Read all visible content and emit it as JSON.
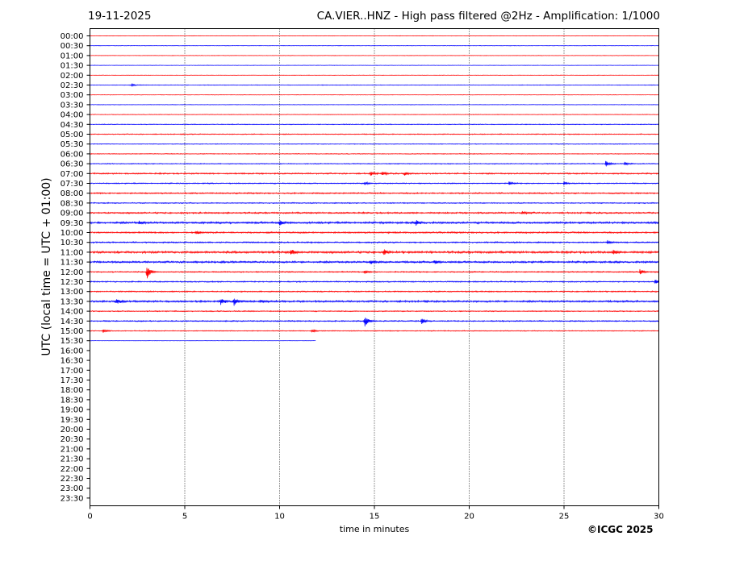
{
  "header": {
    "date": "19-11-2025",
    "title": "CA.VIER..HNZ - High pass filtered @2Hz - Amplification: 1/1000"
  },
  "footer": {
    "copyright": "©ICGC 2025"
  },
  "colors": {
    "trace_a": "#ff0000",
    "trace_b": "#0000ff",
    "axes": "#000000",
    "gridline": "#000000"
  },
  "chart_data": {
    "type": "line",
    "subtype": "helicorder",
    "xlabel": "time in minutes",
    "ylabel": "UTC (local time = UTC + 01:00)",
    "xlim": [
      0,
      30
    ],
    "xticks": [
      0,
      5,
      10,
      15,
      20,
      25,
      30
    ],
    "vertical_gridlines_at": [
      5,
      10,
      15,
      20,
      25
    ],
    "row_labels": [
      "00:00",
      "00:30",
      "01:00",
      "01:30",
      "02:00",
      "02:30",
      "03:00",
      "03:30",
      "04:00",
      "04:30",
      "05:00",
      "05:30",
      "06:00",
      "06:30",
      "07:00",
      "07:30",
      "08:00",
      "08:30",
      "09:00",
      "09:30",
      "10:00",
      "10:30",
      "11:00",
      "11:30",
      "12:00",
      "12:30",
      "13:00",
      "13:30",
      "14:00",
      "14:30",
      "15:00",
      "15:30",
      "16:00",
      "16:30",
      "17:00",
      "17:30",
      "18:00",
      "18:30",
      "19:00",
      "19:30",
      "20:00",
      "20:30",
      "21:00",
      "21:30",
      "22:00",
      "22:30",
      "23:00",
      "23:30"
    ],
    "trace_colors_alternate": [
      "red",
      "blue"
    ],
    "recorded_rows": 32,
    "last_row_end_minute": 11.9,
    "row_noise_levels": [
      0.3,
      0.3,
      0.3,
      0.3,
      0.3,
      0.4,
      0.3,
      0.3,
      0.4,
      0.5,
      0.6,
      0.5,
      0.5,
      0.6,
      0.9,
      0.7,
      0.9,
      0.7,
      1.0,
      1.3,
      1.0,
      0.9,
      1.4,
      1.2,
      0.8,
      0.8,
      0.8,
      1.2,
      0.7,
      0.8,
      0.6,
      0.2
    ],
    "events": [
      {
        "row": "02:30",
        "minute": 2.2,
        "amplitude": 1.5
      },
      {
        "row": "06:30",
        "minute": 27.2,
        "amplitude": 4
      },
      {
        "row": "06:30",
        "minute": 28.2,
        "amplitude": 2
      },
      {
        "row": "07:00",
        "minute": 14.8,
        "amplitude": 2.5
      },
      {
        "row": "07:00",
        "minute": 15.4,
        "amplitude": 2
      },
      {
        "row": "07:00",
        "minute": 16.6,
        "amplitude": 2
      },
      {
        "row": "07:30",
        "minute": 14.5,
        "amplitude": 2
      },
      {
        "row": "07:30",
        "minute": 22.1,
        "amplitude": 2
      },
      {
        "row": "07:30",
        "minute": 25.0,
        "amplitude": 2
      },
      {
        "row": "09:00",
        "minute": 22.8,
        "amplitude": 2
      },
      {
        "row": "09:30",
        "minute": 2.6,
        "amplitude": 2
      },
      {
        "row": "09:30",
        "minute": 10.0,
        "amplitude": 3
      },
      {
        "row": "09:30",
        "minute": 17.2,
        "amplitude": 3
      },
      {
        "row": "10:00",
        "minute": 5.6,
        "amplitude": 2.5
      },
      {
        "row": "10:30",
        "minute": 27.3,
        "amplitude": 2
      },
      {
        "row": "11:00",
        "minute": 10.6,
        "amplitude": 4
      },
      {
        "row": "11:00",
        "minute": 15.5,
        "amplitude": 3
      },
      {
        "row": "11:00",
        "minute": 27.6,
        "amplitude": 3
      },
      {
        "row": "11:30",
        "minute": 14.8,
        "amplitude": 2.5
      },
      {
        "row": "11:30",
        "minute": 18.2,
        "amplitude": 2.5
      },
      {
        "row": "12:00",
        "minute": 3.0,
        "amplitude": 9
      },
      {
        "row": "12:00",
        "minute": 14.5,
        "amplitude": 2
      },
      {
        "row": "12:00",
        "minute": 29.0,
        "amplitude": 3
      },
      {
        "row": "12:30",
        "minute": 29.8,
        "amplitude": 3
      },
      {
        "row": "13:30",
        "minute": 1.4,
        "amplitude": 4
      },
      {
        "row": "13:30",
        "minute": 6.9,
        "amplitude": 4
      },
      {
        "row": "13:30",
        "minute": 7.6,
        "amplitude": 5
      },
      {
        "row": "13:30",
        "minute": 9.0,
        "amplitude": 2
      },
      {
        "row": "14:30",
        "minute": 14.5,
        "amplitude": 7
      },
      {
        "row": "14:30",
        "minute": 17.5,
        "amplitude": 4
      },
      {
        "row": "15:00",
        "minute": 0.7,
        "amplitude": 2
      },
      {
        "row": "15:00",
        "minute": 11.7,
        "amplitude": 2
      }
    ]
  }
}
